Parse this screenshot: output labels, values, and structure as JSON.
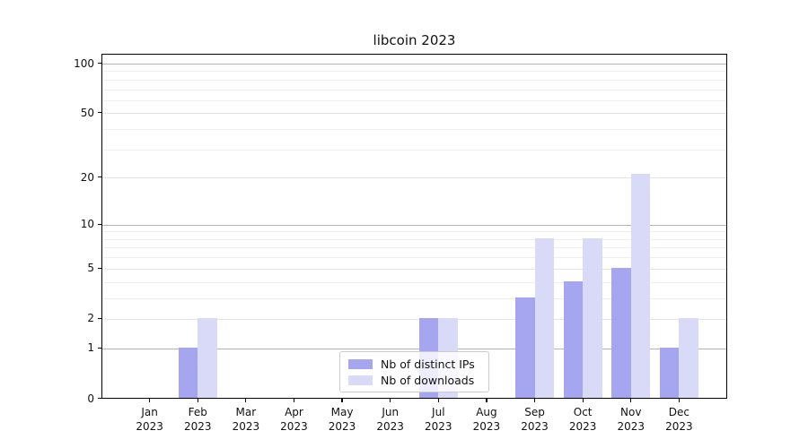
{
  "title": "libcoin 2023",
  "chart_data": {
    "type": "bar",
    "title": "libcoin 2023",
    "categories": [
      "Jan 2023",
      "Feb 2023",
      "Mar 2023",
      "Apr 2023",
      "May 2023",
      "Jun 2023",
      "Jul 2023",
      "Aug 2023",
      "Sep 2023",
      "Oct 2023",
      "Nov 2023",
      "Dec 2023"
    ],
    "series": [
      {
        "name": "Nb of distinct IPs",
        "color": "#a5a5f0",
        "values": [
          0,
          1,
          0,
          0,
          0,
          0,
          2,
          0,
          3,
          4,
          5,
          1
        ]
      },
      {
        "name": "Nb of downloads",
        "color": "#d9d9f8",
        "values": [
          0,
          2,
          0,
          0,
          0,
          0,
          2,
          0,
          8,
          8,
          21,
          2
        ]
      }
    ],
    "xlabel": "",
    "ylabel": "",
    "yscale": "log1p",
    "ylim": [
      0,
      115
    ],
    "yticks": [
      0,
      1,
      2,
      5,
      10,
      20,
      50,
      100
    ],
    "decade_gridlines": [
      1,
      10,
      100
    ],
    "mid_gridlines": [
      2,
      5,
      20,
      50
    ],
    "minor_gridlines": [
      3,
      4,
      6,
      7,
      8,
      9,
      30,
      40,
      60,
      70,
      80,
      90
    ],
    "grid": "horizontal",
    "legend_position": "inside bottom-center"
  },
  "colors": {
    "distinct_ips_bar": "#a5a5f0",
    "downloads_bar": "#d9d9f8",
    "major_gridline": "#b4b4b4",
    "minor_gridline": "#eeeeee",
    "axis": "#000000",
    "legend_border": "#cccccc"
  }
}
